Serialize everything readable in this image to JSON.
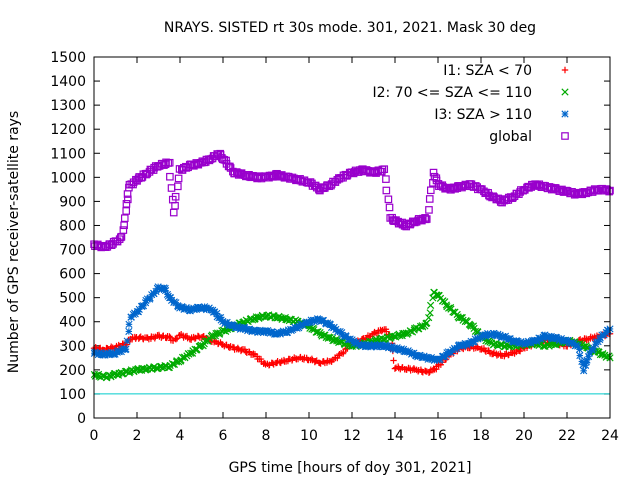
{
  "chart_data": {
    "type": "scatter",
    "title": "NRAYS. SISTED rt 30s mode. 301, 2021. Mask 30 deg",
    "xlabel": "GPS time [hours of doy 301, 2021]",
    "ylabel": "Number of GPS receiver-satellite rays",
    "xlim": [
      0,
      24
    ],
    "ylim": [
      0,
      1500
    ],
    "x_ticks": [
      0,
      2,
      4,
      6,
      8,
      10,
      12,
      14,
      16,
      18,
      20,
      22,
      24
    ],
    "y_ticks": [
      0,
      100,
      200,
      300,
      400,
      500,
      600,
      700,
      800,
      900,
      1000,
      1100,
      1200,
      1300,
      1400,
      1500
    ],
    "reference_line": {
      "y": 100,
      "color": "#00cccc"
    },
    "legend_position": "top-right",
    "series": [
      {
        "name": "I1: SZA < 70",
        "marker": "+",
        "color": "#ff0000",
        "points": [
          [
            0,
            290
          ],
          [
            0.5,
            285
          ],
          [
            1,
            295
          ],
          [
            1.5,
            310
          ],
          [
            1.7,
            330
          ],
          [
            2,
            335
          ],
          [
            2.5,
            330
          ],
          [
            3,
            340
          ],
          [
            3.5,
            335
          ],
          [
            3.7,
            320
          ],
          [
            4,
            345
          ],
          [
            4.5,
            330
          ],
          [
            5,
            340
          ],
          [
            5.5,
            320
          ],
          [
            6,
            305
          ],
          [
            6.5,
            290
          ],
          [
            7,
            280
          ],
          [
            7.5,
            260
          ],
          [
            8,
            220
          ],
          [
            8.5,
            230
          ],
          [
            9,
            240
          ],
          [
            9.5,
            250
          ],
          [
            10,
            245
          ],
          [
            10.5,
            230
          ],
          [
            11,
            235
          ],
          [
            11.5,
            265
          ],
          [
            12,
            310
          ],
          [
            12.5,
            325
          ],
          [
            13,
            350
          ],
          [
            13.5,
            370
          ],
          [
            13.8,
            340
          ],
          [
            14,
            210
          ],
          [
            14.5,
            205
          ],
          [
            15,
            200
          ],
          [
            15.5,
            190
          ],
          [
            15.8,
            200
          ],
          [
            16,
            215
          ],
          [
            16.5,
            260
          ],
          [
            17,
            290
          ],
          [
            17.5,
            295
          ],
          [
            18,
            290
          ],
          [
            18.5,
            270
          ],
          [
            19,
            260
          ],
          [
            19.5,
            270
          ],
          [
            20,
            290
          ],
          [
            20.5,
            310
          ],
          [
            21,
            320
          ],
          [
            21.5,
            310
          ],
          [
            22,
            300
          ],
          [
            22.5,
            320
          ],
          [
            23,
            330
          ],
          [
            23.5,
            340
          ],
          [
            24,
            350
          ]
        ]
      },
      {
        "name": "I2: 70 <= SZA <= 110",
        "marker": "x",
        "color": "#00aa00",
        "points": [
          [
            0,
            180
          ],
          [
            0.5,
            170
          ],
          [
            1,
            180
          ],
          [
            1.5,
            190
          ],
          [
            2,
            200
          ],
          [
            2.5,
            205
          ],
          [
            3,
            210
          ],
          [
            3.5,
            215
          ],
          [
            4,
            240
          ],
          [
            4.5,
            270
          ],
          [
            5,
            300
          ],
          [
            5.5,
            340
          ],
          [
            6,
            360
          ],
          [
            6.5,
            380
          ],
          [
            7,
            400
          ],
          [
            7.5,
            415
          ],
          [
            8,
            425
          ],
          [
            8.5,
            420
          ],
          [
            9,
            410
          ],
          [
            9.5,
            400
          ],
          [
            10,
            380
          ],
          [
            10.5,
            350
          ],
          [
            11,
            330
          ],
          [
            11.5,
            315
          ],
          [
            12,
            300
          ],
          [
            12.5,
            305
          ],
          [
            13,
            320
          ],
          [
            13.5,
            330
          ],
          [
            14,
            340
          ],
          [
            14.5,
            350
          ],
          [
            15,
            370
          ],
          [
            15.5,
            390
          ],
          [
            15.8,
            520
          ],
          [
            16,
            510
          ],
          [
            16.5,
            460
          ],
          [
            17,
            420
          ],
          [
            17.5,
            390
          ],
          [
            18,
            340
          ],
          [
            18.5,
            310
          ],
          [
            19,
            300
          ],
          [
            19.5,
            300
          ],
          [
            20,
            305
          ],
          [
            20.5,
            310
          ],
          [
            21,
            300
          ],
          [
            21.5,
            310
          ],
          [
            22,
            320
          ],
          [
            22.5,
            310
          ],
          [
            23,
            290
          ],
          [
            23.5,
            270
          ],
          [
            24,
            250
          ]
        ]
      },
      {
        "name": "I3: SZA > 110",
        "marker": "*",
        "color": "#0066cc",
        "points": [
          [
            0,
            270
          ],
          [
            0.5,
            265
          ],
          [
            1,
            270
          ],
          [
            1.5,
            290
          ],
          [
            1.7,
            420
          ],
          [
            2,
            440
          ],
          [
            2.5,
            490
          ],
          [
            3,
            540
          ],
          [
            3.3,
            535
          ],
          [
            3.5,
            500
          ],
          [
            4,
            460
          ],
          [
            4.5,
            450
          ],
          [
            5,
            460
          ],
          [
            5.5,
            450
          ],
          [
            6,
            400
          ],
          [
            6.5,
            380
          ],
          [
            7,
            370
          ],
          [
            7.5,
            360
          ],
          [
            8,
            360
          ],
          [
            8.5,
            350
          ],
          [
            9,
            360
          ],
          [
            9.5,
            380
          ],
          [
            10,
            400
          ],
          [
            10.5,
            410
          ],
          [
            11,
            385
          ],
          [
            11.5,
            350
          ],
          [
            12,
            320
          ],
          [
            12.5,
            300
          ],
          [
            13,
            300
          ],
          [
            13.5,
            300
          ],
          [
            14,
            290
          ],
          [
            14.5,
            280
          ],
          [
            15,
            260
          ],
          [
            15.5,
            250
          ],
          [
            16,
            240
          ],
          [
            16.5,
            270
          ],
          [
            17,
            300
          ],
          [
            17.5,
            310
          ],
          [
            18,
            340
          ],
          [
            18.5,
            350
          ],
          [
            19,
            340
          ],
          [
            19.5,
            320
          ],
          [
            20,
            310
          ],
          [
            20.5,
            320
          ],
          [
            21,
            340
          ],
          [
            21.5,
            330
          ],
          [
            22,
            320
          ],
          [
            22.5,
            300
          ],
          [
            22.8,
            200
          ],
          [
            23,
            260
          ],
          [
            23.5,
            330
          ],
          [
            24,
            370
          ]
        ]
      },
      {
        "name": "global",
        "marker": "square",
        "color": "#9900cc",
        "points": [
          [
            0,
            720
          ],
          [
            0.5,
            710
          ],
          [
            1,
            730
          ],
          [
            1.3,
            750
          ],
          [
            1.5,
            860
          ],
          [
            1.6,
            960
          ],
          [
            2,
            990
          ],
          [
            2.5,
            1020
          ],
          [
            3,
            1050
          ],
          [
            3.5,
            1060
          ],
          [
            3.7,
            850
          ],
          [
            4,
            1030
          ],
          [
            4.5,
            1050
          ],
          [
            5,
            1060
          ],
          [
            5.5,
            1080
          ],
          [
            5.8,
            1100
          ],
          [
            6,
            1080
          ],
          [
            6.5,
            1020
          ],
          [
            7,
            1010
          ],
          [
            7.5,
            1000
          ],
          [
            8,
            1000
          ],
          [
            8.5,
            1010
          ],
          [
            9,
            1000
          ],
          [
            9.5,
            990
          ],
          [
            10,
            980
          ],
          [
            10.5,
            950
          ],
          [
            11,
            970
          ],
          [
            11.5,
            1000
          ],
          [
            12,
            1020
          ],
          [
            12.5,
            1030
          ],
          [
            13,
            1020
          ],
          [
            13.5,
            1030
          ],
          [
            13.8,
            830
          ],
          [
            14,
            820
          ],
          [
            14.5,
            800
          ],
          [
            15,
            820
          ],
          [
            15.5,
            830
          ],
          [
            15.8,
            1020
          ],
          [
            16,
            970
          ],
          [
            16.5,
            950
          ],
          [
            17,
            960
          ],
          [
            17.5,
            970
          ],
          [
            18,
            950
          ],
          [
            18.5,
            920
          ],
          [
            19,
            900
          ],
          [
            19.5,
            920
          ],
          [
            20,
            950
          ],
          [
            20.5,
            970
          ],
          [
            21,
            960
          ],
          [
            21.5,
            950
          ],
          [
            22,
            940
          ],
          [
            22.5,
            930
          ],
          [
            23,
            940
          ],
          [
            23.5,
            950
          ],
          [
            24,
            945
          ]
        ]
      }
    ]
  }
}
